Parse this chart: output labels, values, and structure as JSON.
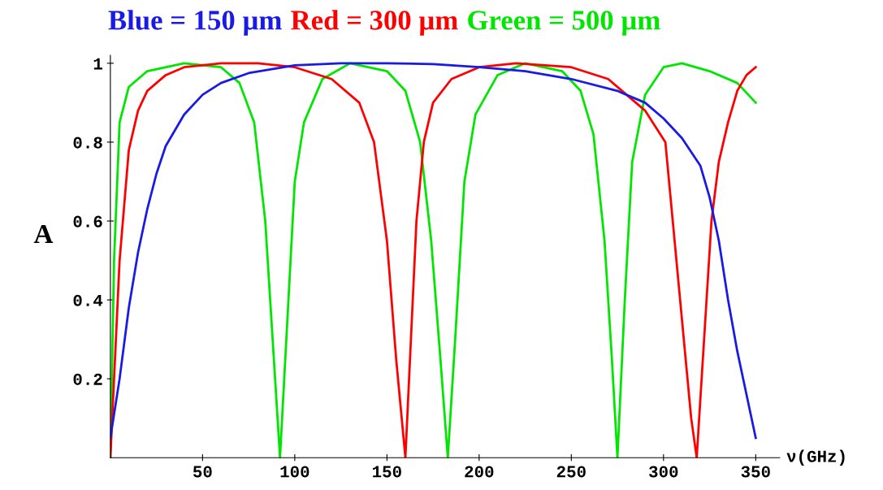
{
  "chart_data": {
    "type": "line",
    "xlabel": "ν(GHz)",
    "ylabel": "A",
    "xlim": [
      0,
      363
    ],
    "ylim": [
      0,
      1.02
    ],
    "xticks": [
      50,
      100,
      150,
      200,
      250,
      300,
      350
    ],
    "yticks": [
      0.2,
      0.4,
      0.6,
      0.8,
      {
        "value": 1,
        "label": "1"
      }
    ],
    "grid": false,
    "legend": false,
    "marker": "none",
    "line_style": "solid",
    "series": [
      {
        "name": "Blue = 150 µm",
        "color": "#1a1ae6",
        "x": [
          0,
          5,
          10,
          15,
          20,
          25,
          30,
          40,
          50,
          60,
          75,
          100,
          125,
          150,
          175,
          200,
          225,
          250,
          275,
          290,
          300,
          310,
          320,
          325,
          330,
          335,
          340,
          345,
          350
        ],
        "values": [
          0.05,
          0.2,
          0.38,
          0.52,
          0.63,
          0.72,
          0.79,
          0.87,
          0.92,
          0.95,
          0.975,
          0.995,
          1.0,
          1.0,
          0.998,
          0.99,
          0.98,
          0.96,
          0.93,
          0.9,
          0.86,
          0.81,
          0.74,
          0.66,
          0.55,
          0.4,
          0.27,
          0.16,
          0.05
        ]
      },
      {
        "name": "Red = 300 µm",
        "color": "#ff0000",
        "x": [
          0,
          3,
          5,
          10,
          15,
          20,
          30,
          40,
          60,
          80,
          100,
          120,
          135,
          143,
          150,
          155,
          160,
          163,
          166,
          170,
          175,
          185,
          200,
          220,
          250,
          270,
          290,
          301,
          305,
          310,
          315,
          318,
          322,
          326,
          330,
          335,
          340,
          345,
          350
        ],
        "values": [
          0,
          0.3,
          0.5,
          0.78,
          0.88,
          0.93,
          0.97,
          0.99,
          1.0,
          1.0,
          0.99,
          0.96,
          0.9,
          0.8,
          0.55,
          0.25,
          0,
          0.3,
          0.6,
          0.8,
          0.9,
          0.96,
          0.99,
          1.0,
          0.99,
          0.96,
          0.88,
          0.8,
          0.6,
          0.35,
          0.1,
          0,
          0.3,
          0.6,
          0.75,
          0.85,
          0.93,
          0.97,
          0.99
        ]
      },
      {
        "name": "Green = 500 µm",
        "color": "#00e600",
        "x": [
          0,
          2,
          5,
          10,
          20,
          40,
          60,
          70,
          78,
          84,
          88,
          92,
          96,
          100,
          105,
          115,
          130,
          150,
          160,
          168,
          174,
          179,
          183,
          187,
          192,
          198,
          210,
          225,
          245,
          255,
          262,
          268,
          272,
          275,
          279,
          283,
          290,
          300,
          310,
          325,
          340,
          350
        ],
        "values": [
          0,
          0.5,
          0.85,
          0.94,
          0.98,
          1.0,
          0.99,
          0.95,
          0.85,
          0.6,
          0.3,
          0,
          0.35,
          0.7,
          0.85,
          0.96,
          1.0,
          0.98,
          0.93,
          0.8,
          0.55,
          0.25,
          0,
          0.3,
          0.7,
          0.87,
          0.97,
          1.0,
          0.98,
          0.93,
          0.82,
          0.55,
          0.25,
          0,
          0.4,
          0.75,
          0.92,
          0.99,
          1.0,
          0.98,
          0.95,
          0.9
        ]
      }
    ]
  }
}
